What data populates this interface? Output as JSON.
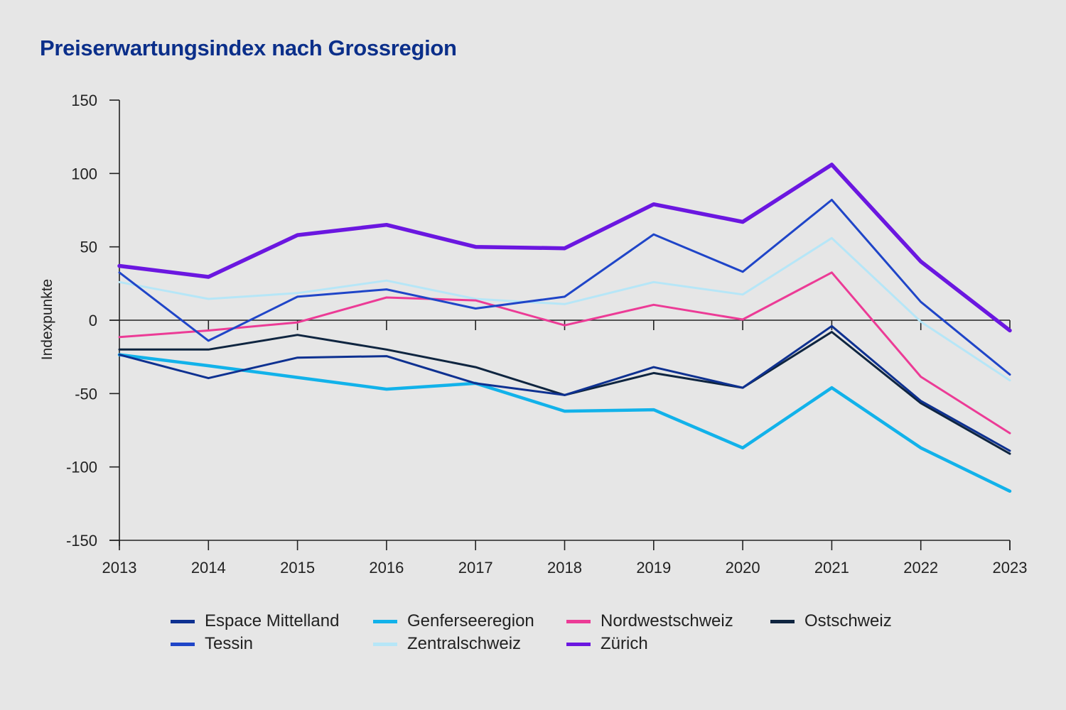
{
  "title": "Preiserwartungsindex nach Grossregion",
  "chart_data": {
    "type": "line",
    "title": "Preiserwartungsindex nach Grossregion",
    "xlabel": "",
    "ylabel": "Indexpunkte",
    "x": [
      "2013",
      "2014",
      "2015",
      "2016",
      "2017",
      "2018",
      "2019",
      "2020",
      "2021",
      "2022",
      "2023"
    ],
    "ylim": [
      -150,
      150
    ],
    "yticks": [
      150,
      100,
      50,
      0,
      -50,
      -100,
      -150
    ],
    "grid": false,
    "legend_position": "bottom",
    "series": [
      {
        "name": "Espace Mittelland",
        "color": "#0e3191",
        "values": [
          -23.5,
          -39.5,
          -25.5,
          -24.5,
          -43,
          -51,
          -32,
          -46,
          -4,
          -55,
          -89
        ]
      },
      {
        "name": "Genferseeregion",
        "color": "#12b2ea",
        "values": [
          -23.5,
          -31,
          -39,
          -47,
          -43,
          -62,
          -61,
          -87,
          -46,
          -87,
          -116.5
        ]
      },
      {
        "name": "Nordwestschweiz",
        "color": "#ec3b96",
        "values": [
          -11.5,
          -7,
          -1.5,
          15.5,
          13.5,
          -3.5,
          10.5,
          0.5,
          32.5,
          -38.5,
          -77
        ]
      },
      {
        "name": "Ostschweiz",
        "color": "#0f2540",
        "values": [
          -20,
          -20,
          -10,
          -20,
          -32,
          -51,
          -36,
          -46,
          -8,
          -56.5,
          -91
        ]
      },
      {
        "name": "Tessin",
        "color": "#1f45c8",
        "values": [
          32.5,
          -14,
          16,
          21,
          8,
          16,
          58.5,
          33,
          82,
          12.5,
          -37
        ]
      },
      {
        "name": "Zentralschweiz",
        "color": "#b6e6f7",
        "values": [
          26,
          14.5,
          18.5,
          27,
          14.5,
          11,
          26,
          17.5,
          56,
          -1,
          -41
        ]
      },
      {
        "name": "Zürich",
        "color": "#6b17e0",
        "values": [
          37,
          29.5,
          58,
          65,
          50,
          49,
          79,
          67,
          106,
          40,
          -7
        ]
      }
    ]
  },
  "legend": {
    "items": [
      {
        "name": "Espace Mittelland",
        "color": "#0e3191"
      },
      {
        "name": "Genferseeregion",
        "color": "#12b2ea"
      },
      {
        "name": "Nordwestschweiz",
        "color": "#ec3b96"
      },
      {
        "name": "Ostschweiz",
        "color": "#0f2540"
      },
      {
        "name": "Tessin",
        "color": "#1f45c8"
      },
      {
        "name": "Zentralschweiz",
        "color": "#b6e6f7"
      },
      {
        "name": "Zürich",
        "color": "#6b17e0"
      }
    ]
  }
}
